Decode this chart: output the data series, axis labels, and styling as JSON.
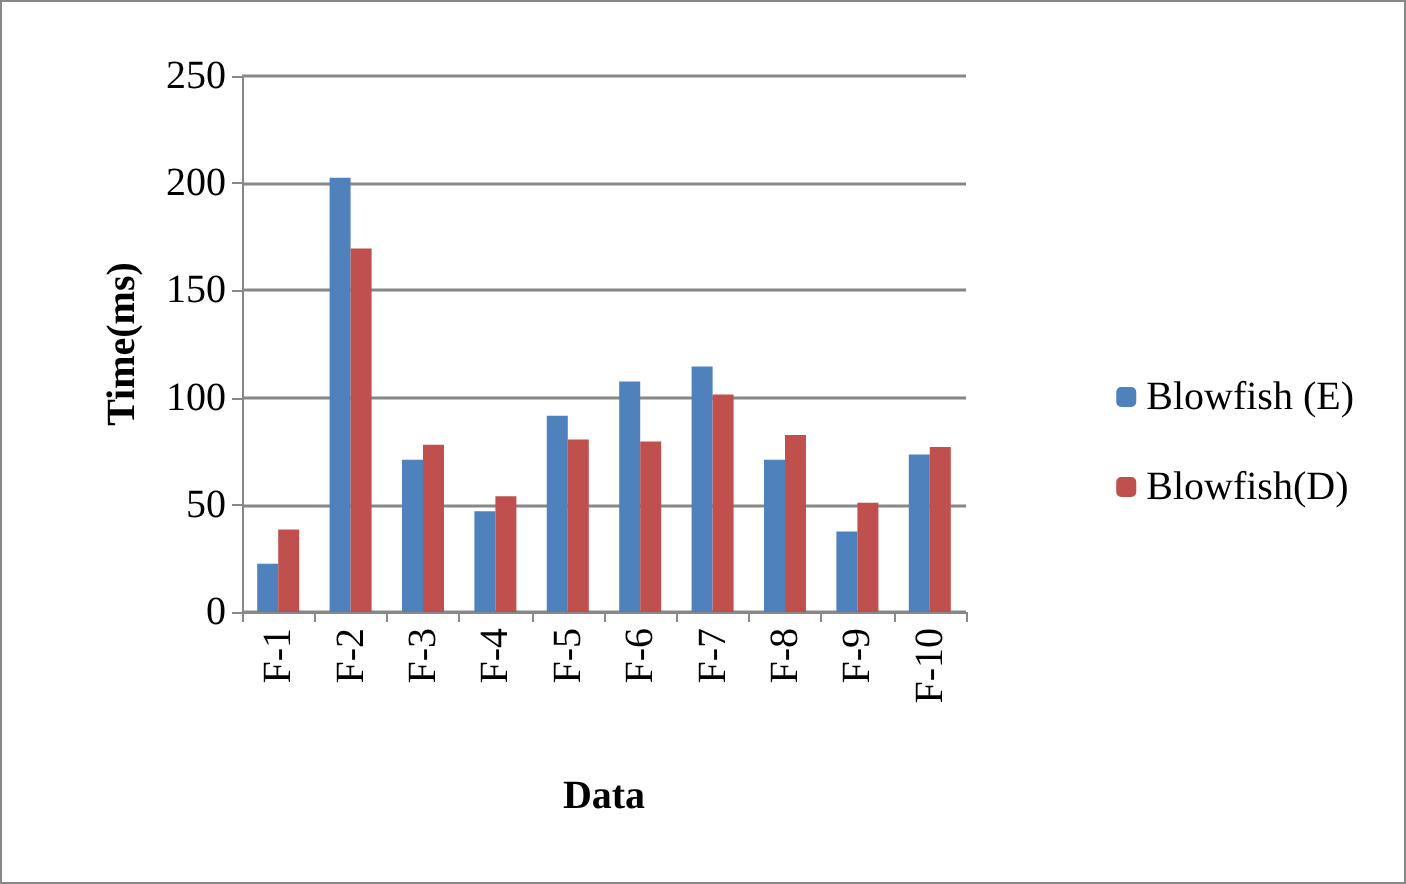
{
  "chart_data": {
    "type": "bar",
    "xlabel": "Data",
    "ylabel": "Time(ms)",
    "categories": [
      "F-1",
      "F-2",
      "F-3",
      "F-4",
      "F-5",
      "F-6",
      "F-7",
      "F-8",
      "F-9",
      "F-10"
    ],
    "series": [
      {
        "name": "Blowfish (E)",
        "color": "#4f81bd",
        "values": [
          22.5,
          202.5,
          71,
          47,
          91.5,
          107.5,
          114.5,
          71,
          37.5,
          73.5
        ]
      },
      {
        "name": "Blowfish(D)",
        "color": "#c0504d",
        "values": [
          38.5,
          169.5,
          78,
          54,
          80.5,
          79.5,
          101.5,
          82.5,
          51,
          77
        ]
      }
    ],
    "ylim": [
      0,
      250
    ],
    "yticks": [
      0,
      50,
      100,
      150,
      200,
      250
    ],
    "grid": "y",
    "legend": "right"
  }
}
